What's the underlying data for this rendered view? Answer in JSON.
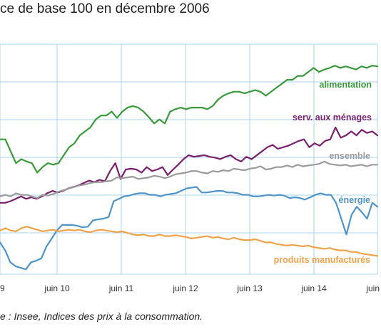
{
  "title": "ce de base 100 en décembre 2006",
  "source": "e : Insee, Indices des prix à la consommation.",
  "colors": {
    "alimentation": "#3a9a3a",
    "services": "#7a1f6e",
    "ensemble": "#9b9b9b",
    "energie": "#4f94c9",
    "produits": "#f0a24a",
    "grid": "#a9d4ef"
  },
  "chart_data": {
    "type": "line",
    "title": "ce de base 100 en décembre 2006",
    "xlabel": "",
    "ylabel": "",
    "x_ticks": [
      "9",
      "juin 10",
      "juin 11",
      "juin 12",
      "juin 13",
      "juin 14",
      "juin"
    ],
    "grid": true,
    "series": [
      {
        "name": "alimentation",
        "key": "alimentation",
        "values": [
          114.0,
          114.0,
          112.5,
          111.0,
          111.5,
          111.2,
          111.0,
          109.8,
          110.5,
          111.0,
          110.8,
          111.0,
          112.0,
          113.0,
          113.5,
          114.5,
          115.0,
          115.5,
          116.5,
          117.0,
          117.0,
          117.5,
          116.7,
          117.5,
          118.0,
          118.2,
          118.0,
          117.5,
          116.8,
          116.0,
          116.5,
          116.0,
          117.5,
          117.8,
          118.0,
          117.8,
          118.0,
          118.0,
          118.0,
          117.8,
          118.2,
          119.0,
          119.5,
          119.8,
          120.0,
          120.0,
          119.8,
          120.0,
          120.2,
          120.0,
          119.5,
          120.0,
          120.5,
          121.0,
          121.5,
          121.5,
          122.0,
          122.0,
          122.5,
          123.0,
          122.5,
          122.8,
          123.0,
          123.3,
          123.0,
          123.2,
          123.0,
          122.8,
          123.2,
          123.0,
          123.3,
          123.2
        ]
      },
      {
        "name": "serv. aux ménages",
        "key": "services",
        "values": [
          106.0,
          106.0,
          106.2,
          106.5,
          106.8,
          106.5,
          106.7,
          106.5,
          106.8,
          107.2,
          107.5,
          107.3,
          107.5,
          107.8,
          108.0,
          108.2,
          108.5,
          108.8,
          108.6,
          108.9,
          108.7,
          110.0,
          111.0,
          109.0,
          110.2,
          110.3,
          110.2,
          109.8,
          110.5,
          110.0,
          110.2,
          110.5,
          109.5,
          110.2,
          110.8,
          111.5,
          112.0,
          111.8,
          111.9,
          112.0,
          111.8,
          111.7,
          111.5,
          111.8,
          112.0,
          111.5,
          111.2,
          111.8,
          111.5,
          112.0,
          112.5,
          113.0,
          113.3,
          112.8,
          113.0,
          113.2,
          113.5,
          113.8,
          114.0,
          113.0,
          113.5,
          113.2,
          113.8,
          114.0,
          115.5,
          114.2,
          114.5,
          115.0,
          114.5,
          115.2,
          114.8,
          115.0,
          114.5
        ]
      },
      {
        "name": "ensemble",
        "key": "ensemble",
        "values": [
          106.8,
          107.0,
          106.8,
          107.2,
          107.0,
          107.0,
          106.8,
          106.6,
          107.0,
          106.9,
          107.1,
          107.4,
          107.6,
          107.8,
          108.0,
          108.2,
          108.3,
          108.5,
          108.6,
          108.6,
          108.7,
          108.8,
          109.2,
          109.1,
          109.2,
          109.3,
          109.0,
          109.1,
          109.2,
          109.4,
          109.3,
          109.1,
          109.3,
          109.6,
          109.7,
          109.8,
          110.0,
          110.0,
          109.8,
          109.7,
          110.0,
          109.9,
          110.1,
          110.0,
          110.3,
          110.2,
          110.1,
          110.3,
          110.4,
          110.6,
          110.2,
          110.3,
          110.5,
          110.5,
          110.7,
          110.5,
          110.8,
          110.6,
          110.7,
          110.8,
          110.9,
          111.2,
          110.9,
          110.8,
          110.7,
          110.8,
          110.6,
          110.7,
          110.8,
          110.6,
          110.8,
          110.8
        ]
      },
      {
        "name": "énergie",
        "key": "energie",
        "values": [
          101.0,
          100.0,
          98.5,
          98.0,
          97.8,
          97.6,
          98.5,
          98.7,
          99.0,
          100.5,
          101.5,
          102.5,
          103.2,
          103.2,
          103.2,
          103.1,
          102.9,
          103.0,
          103.8,
          103.9,
          104.0,
          104.2,
          106.2,
          106.5,
          106.8,
          106.9,
          107.1,
          107.2,
          107.2,
          107.0,
          107.0,
          106.8,
          107.0,
          107.1,
          107.2,
          107.5,
          107.8,
          107.9,
          108.0,
          107.3,
          107.3,
          107.4,
          107.5,
          107.5,
          107.3,
          107.3,
          107.2,
          107.0,
          107.0,
          106.8,
          106.8,
          106.9,
          107.0,
          106.9,
          107.0,
          106.9,
          106.6,
          106.7,
          106.6,
          106.4,
          106.7,
          107.0,
          107.2,
          107.0,
          107.0,
          106.0,
          104.0,
          102.0,
          104.5,
          105.5,
          104.8,
          104.0,
          106.0,
          105.5
        ]
      },
      {
        "name": "produits manufacturés",
        "key": "produits",
        "values": [
          102.5,
          102.8,
          102.5,
          102.4,
          102.8,
          103.0,
          102.8,
          102.6,
          102.4,
          102.5,
          102.6,
          102.4,
          102.5,
          102.6,
          102.5,
          102.6,
          102.4,
          102.3,
          102.5,
          102.6,
          102.5,
          102.4,
          102.3,
          102.4,
          102.2,
          102.0,
          101.9,
          102.0,
          101.8,
          101.8,
          102.0,
          101.8,
          101.8,
          101.9,
          101.8,
          101.7,
          101.5,
          101.6,
          101.7,
          101.8,
          101.6,
          101.7,
          101.5,
          101.4,
          101.6,
          101.4,
          101.3,
          101.3,
          101.4,
          101.2,
          101.0,
          101.0,
          100.8,
          100.7,
          100.6,
          100.7,
          100.6,
          100.5,
          100.6,
          100.4,
          100.3,
          100.2,
          100.3,
          100.1,
          100.0,
          100.0,
          99.8,
          99.8,
          99.6,
          99.5,
          99.4,
          99.3
        ]
      }
    ]
  }
}
